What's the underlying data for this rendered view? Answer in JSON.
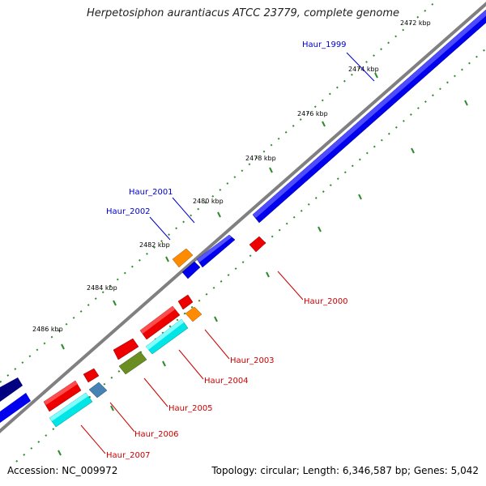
{
  "title": "Herpetosiphon aurantiacus ATCC 23779, complete genome",
  "footer": {
    "accession": "Accession: NC_009972",
    "summary": "Topology: circular; Length: 6,346,587 bp; Genes: 5,042"
  },
  "tick_labels": [
    "2472 kbp",
    "2474 kbp",
    "2476 kbp",
    "2478 kbp",
    "2480 kbp",
    "2482 kbp",
    "2484 kbp",
    "2486 kbp"
  ],
  "gene_labels": [
    {
      "id": "Haur_1999",
      "strand": "forward",
      "color": "#0000cc"
    },
    {
      "id": "Haur_2001",
      "strand": "forward",
      "color": "#0000cc"
    },
    {
      "id": "Haur_2002",
      "strand": "forward",
      "color": "#0000cc"
    },
    {
      "id": "Haur_2000",
      "strand": "reverse",
      "color": "#cc0000"
    },
    {
      "id": "Haur_2003",
      "strand": "reverse",
      "color": "#cc0000"
    },
    {
      "id": "Haur_2004",
      "strand": "reverse",
      "color": "#cc0000"
    },
    {
      "id": "Haur_2005",
      "strand": "reverse",
      "color": "#cc0000"
    },
    {
      "id": "Haur_2006",
      "strand": "reverse",
      "color": "#cc0000"
    },
    {
      "id": "Haur_2007",
      "strand": "reverse",
      "color": "#cc0000"
    }
  ],
  "feature_colors": {
    "cds_forward": "#0000ee",
    "cds_reverse": "#ee0000",
    "rna_cyan": "#00e5e5",
    "orange": "#ff8c00",
    "olive": "#6b8e23",
    "steel": "#4682b4",
    "navy": "#000080",
    "backbone": "#808080",
    "ticks": "#2e8b2e"
  }
}
